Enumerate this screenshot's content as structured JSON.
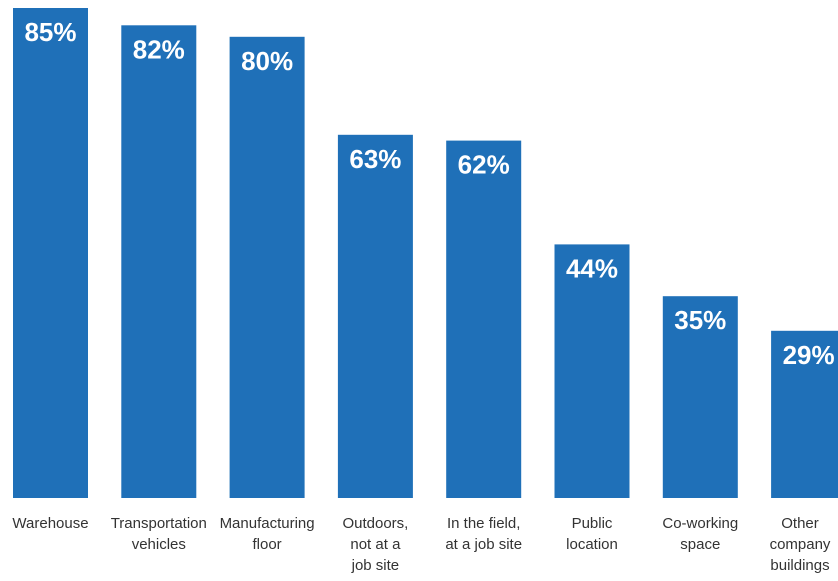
{
  "chart_data": {
    "type": "bar",
    "categories": [
      [
        "Warehouse"
      ],
      [
        "Transportation",
        "vehicles"
      ],
      [
        "Manufacturing",
        "floor"
      ],
      [
        "Outdoors,",
        "not at a",
        "job site"
      ],
      [
        "In the field,",
        "at a job site"
      ],
      [
        "Public",
        "location"
      ],
      [
        "Co-working",
        "space"
      ],
      [
        "Other",
        "company",
        "buildings"
      ]
    ],
    "values": [
      85,
      82,
      80,
      63,
      62,
      44,
      35,
      29
    ],
    "data_labels": [
      "85%",
      "82%",
      "80%",
      "63%",
      "62%",
      "44%",
      "35%",
      "29%"
    ],
    "ylim": [
      0,
      85
    ],
    "grid": false,
    "bar_color": "#1f70b8",
    "label_color": "#ffffff",
    "text_color": "#333333"
  }
}
